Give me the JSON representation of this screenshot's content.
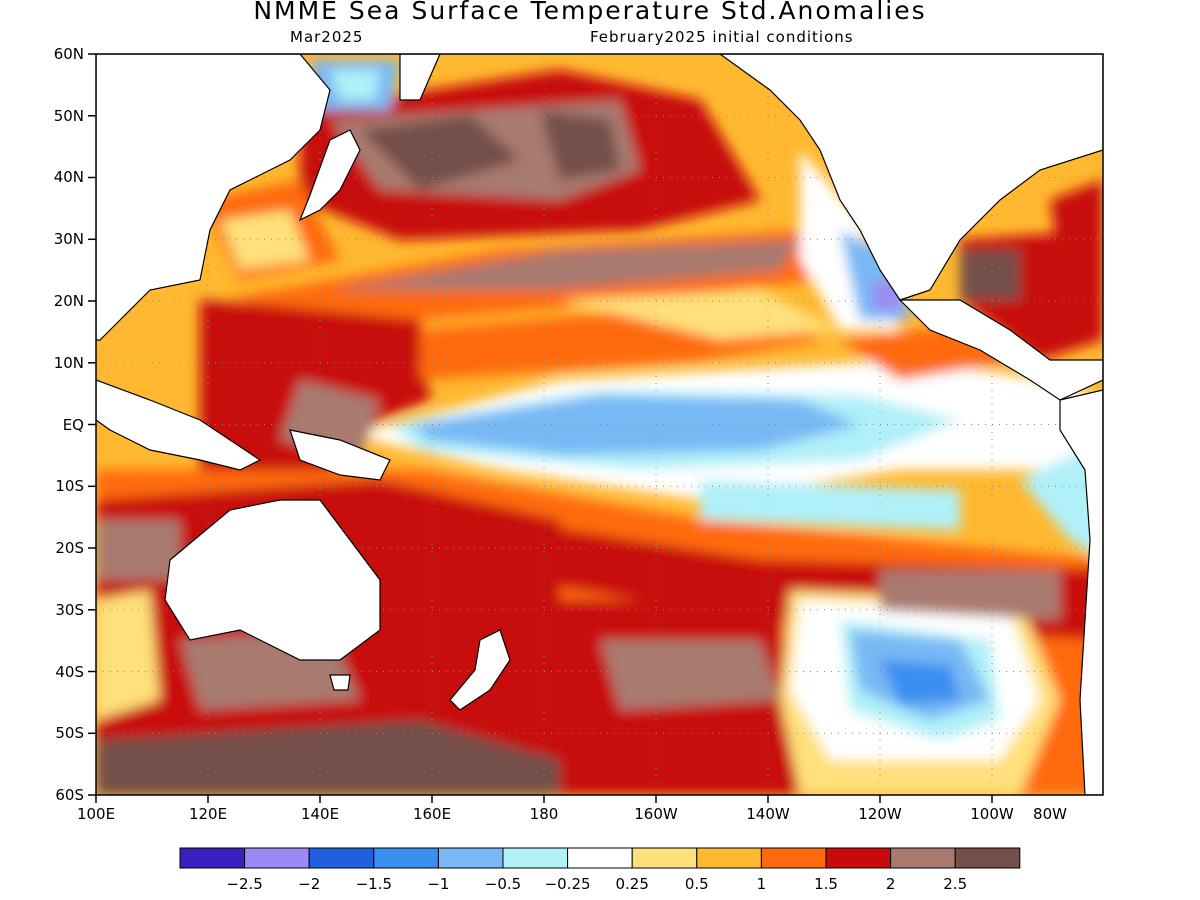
{
  "title": "NMME Sea Surface Temperature Std.Anomalies",
  "subtitle_left": "Mar2025",
  "subtitle_right": "February2025 initial conditions",
  "lat_labels": [
    "60N",
    "50N",
    "40N",
    "30N",
    "20N",
    "10N",
    "EQ",
    "10S",
    "20S",
    "30S",
    "40S",
    "50S",
    "60S"
  ],
  "lon_labels": [
    "100E",
    "120E",
    "140E",
    "160E",
    "180",
    "160W",
    "140W",
    "120W",
    "100W",
    "80W"
  ],
  "colorbar": {
    "colors": [
      "#3c1fbf",
      "#9b8af5",
      "#1f5fe0",
      "#3b8ff0",
      "#78b8f5",
      "#b0f0f8",
      "#ffffff",
      "#ffe07a",
      "#ffb830",
      "#ff6a10",
      "#c80a0a",
      "#a87a70",
      "#74504a"
    ],
    "labels": [
      "-2.5",
      "-2",
      "-1.5",
      "-1",
      "-0.5",
      "-0.25",
      "0.25",
      "0.5",
      "1",
      "1.5",
      "2",
      "2.5"
    ]
  }
}
